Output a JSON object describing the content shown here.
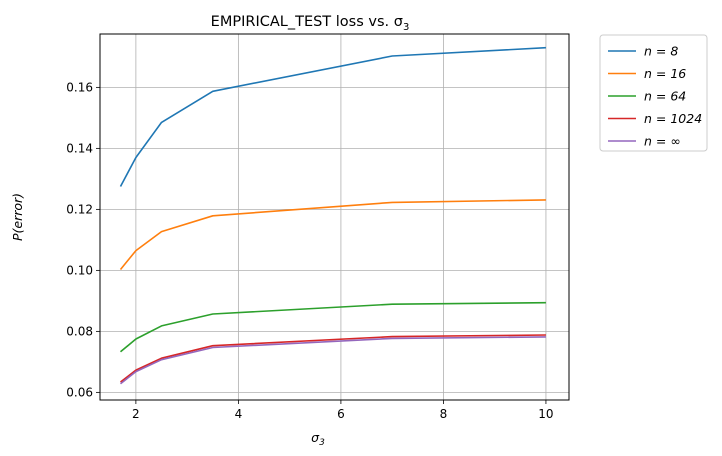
{
  "chart_data": {
    "type": "line",
    "title": "EMPIRICAL_TEST loss vs. σ",
    "title_sub": "3",
    "xlabel": "σ",
    "xlabel_sub": "3",
    "ylabel": "P(error)",
    "xlim": [
      1.3,
      10.45
    ],
    "ylim": [
      0.0575,
      0.1775
    ],
    "xticks": [
      2,
      4,
      6,
      8,
      10
    ],
    "yticks": [
      0.06,
      0.08,
      0.1,
      0.12,
      0.14,
      0.16
    ],
    "ytick_labels": [
      "0.06",
      "0.08",
      "0.10",
      "0.12",
      "0.14",
      "0.16"
    ],
    "grid": true,
    "legend_position": "outside-right-top",
    "x": [
      1.7,
      2.0,
      2.5,
      3.5,
      7.0,
      10.0
    ],
    "series": [
      {
        "name": "n = 8",
        "color": "#1f77b4",
        "values": [
          0.1275,
          0.137,
          0.1485,
          0.1587,
          0.1703,
          0.173
        ]
      },
      {
        "name": "n = 16",
        "color": "#ff7f0e",
        "values": [
          0.1003,
          0.1065,
          0.1127,
          0.1179,
          0.1223,
          0.1231
        ]
      },
      {
        "name": "n = 64",
        "color": "#2ca02c",
        "values": [
          0.0733,
          0.0775,
          0.0818,
          0.0857,
          0.0889,
          0.0894
        ]
      },
      {
        "name": "n = 1024",
        "color": "#d62728",
        "values": [
          0.0634,
          0.0673,
          0.0712,
          0.0753,
          0.0783,
          0.0788
        ]
      },
      {
        "name": "n = ∞",
        "color": "#9467bd",
        "values": [
          0.0628,
          0.0668,
          0.0707,
          0.0747,
          0.0777,
          0.0782
        ]
      }
    ]
  }
}
